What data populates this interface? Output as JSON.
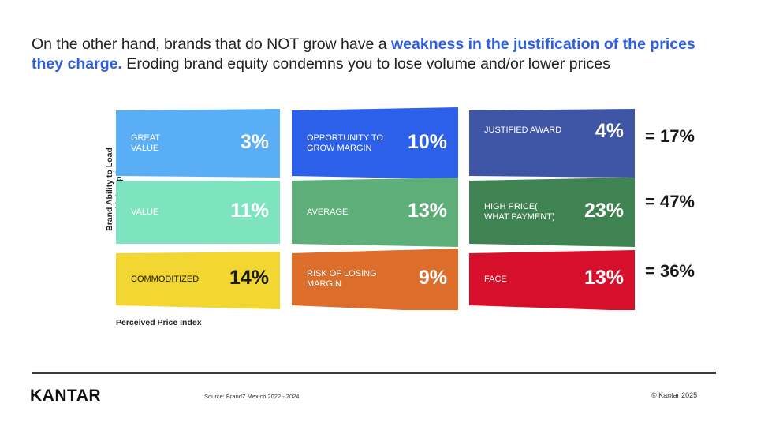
{
  "headline": {
    "part1": "On the other hand, brands that do NOT grow have a ",
    "highlight": "weakness in the justification of the prices they charge.",
    "part2": " Eroding brand equity condemns you to lose volume and/or lower prices"
  },
  "axes": {
    "y_label_line1": "Brand Ability to Load",
    "y_label_line2": "A higher price",
    "x_label": "Perceived Price Index"
  },
  "chart_data": {
    "type": "table",
    "rows": [
      {
        "total": "= 17%",
        "cells": [
          {
            "label": "GREAT\nVALUE",
            "value": "3%",
            "percent": 3,
            "color": "#5aaef5"
          },
          {
            "label": "OPPORTUNITY TO\nGROW MARGIN",
            "value": "10%",
            "percent": 10,
            "color": "#2c5fea"
          },
          {
            "label": "JUSTIFIED AWARD",
            "value": "4%",
            "percent": 4,
            "color": "#3d55a4"
          }
        ]
      },
      {
        "total": "= 47%",
        "cells": [
          {
            "label": "VALUE",
            "value": "11%",
            "percent": 11,
            "color": "#7ee3bf"
          },
          {
            "label": "AVERAGE",
            "value": "13%",
            "percent": 13,
            "color": "#5eae7a"
          },
          {
            "label": "HIGH PRICE(\nWHAT PAYMENT)",
            "value": "23%",
            "percent": 23,
            "color": "#3f8352"
          }
        ]
      },
      {
        "total": "= 36%",
        "cells": [
          {
            "label": "COMMODITIZED",
            "value": "14%",
            "percent": 14,
            "color": "#f2d631"
          },
          {
            "label": "RISK OF LOSING\nMARGIN",
            "value": "9%",
            "percent": 9,
            "color": "#dd6d2a"
          },
          {
            "label": "FACE",
            "value": "13%",
            "percent": 13,
            "color": "#d60f2b"
          }
        ]
      }
    ]
  },
  "footer": {
    "logo": "KANTAR",
    "source": "Source: BrandZ Mexico 2022  - 2024",
    "copyright": "© Kantar 2025"
  }
}
